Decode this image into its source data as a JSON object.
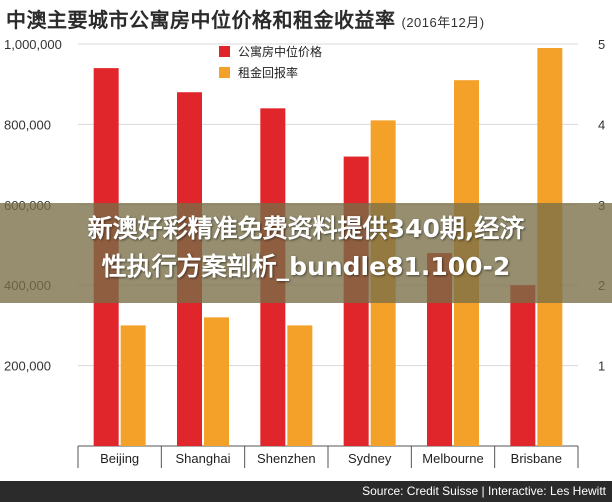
{
  "title": "中澳主要城市公寓房中位价格和租金收益率",
  "title_note": "(2016年12月)",
  "overlay_line1": "新澳好彩精准免费资料提供340期,经济",
  "overlay_line2": "性执行方案剖析_bundle81.100-2",
  "footer": "Source: Credit Suisse | Interactive: Les Hewitt",
  "colors": {
    "price": "#e0262b",
    "yield": "#f4a12a",
    "axis": "#555555",
    "grid": "#d8d8d8"
  },
  "chart_data": {
    "type": "bar",
    "categories": [
      "Beijing",
      "Shanghai",
      "Shenzhen",
      "Sydney",
      "Melbourne",
      "Brisbane"
    ],
    "series": [
      {
        "name": "公寓房中位价格",
        "axis": "left",
        "values": [
          940000,
          880000,
          840000,
          720000,
          480000,
          400000
        ]
      },
      {
        "name": "租金回报率",
        "axis": "right",
        "values": [
          1.5,
          1.6,
          1.5,
          4.05,
          4.55,
          4.95
        ]
      }
    ],
    "y_left": {
      "min": 0,
      "max": 1000000,
      "ticks": [
        0,
        200000,
        400000,
        600000,
        800000,
        1000000
      ],
      "tick_labels": [
        "",
        "200,000",
        "400,000",
        "600,000",
        "800,000",
        "1,000,000"
      ]
    },
    "y_right": {
      "min": 0,
      "max": 5,
      "ticks": [
        0,
        1,
        2,
        3,
        4,
        5
      ],
      "tick_labels": [
        "",
        "1",
        "2",
        "3",
        "4",
        "5"
      ]
    },
    "legend": "top-left",
    "grid": true
  }
}
